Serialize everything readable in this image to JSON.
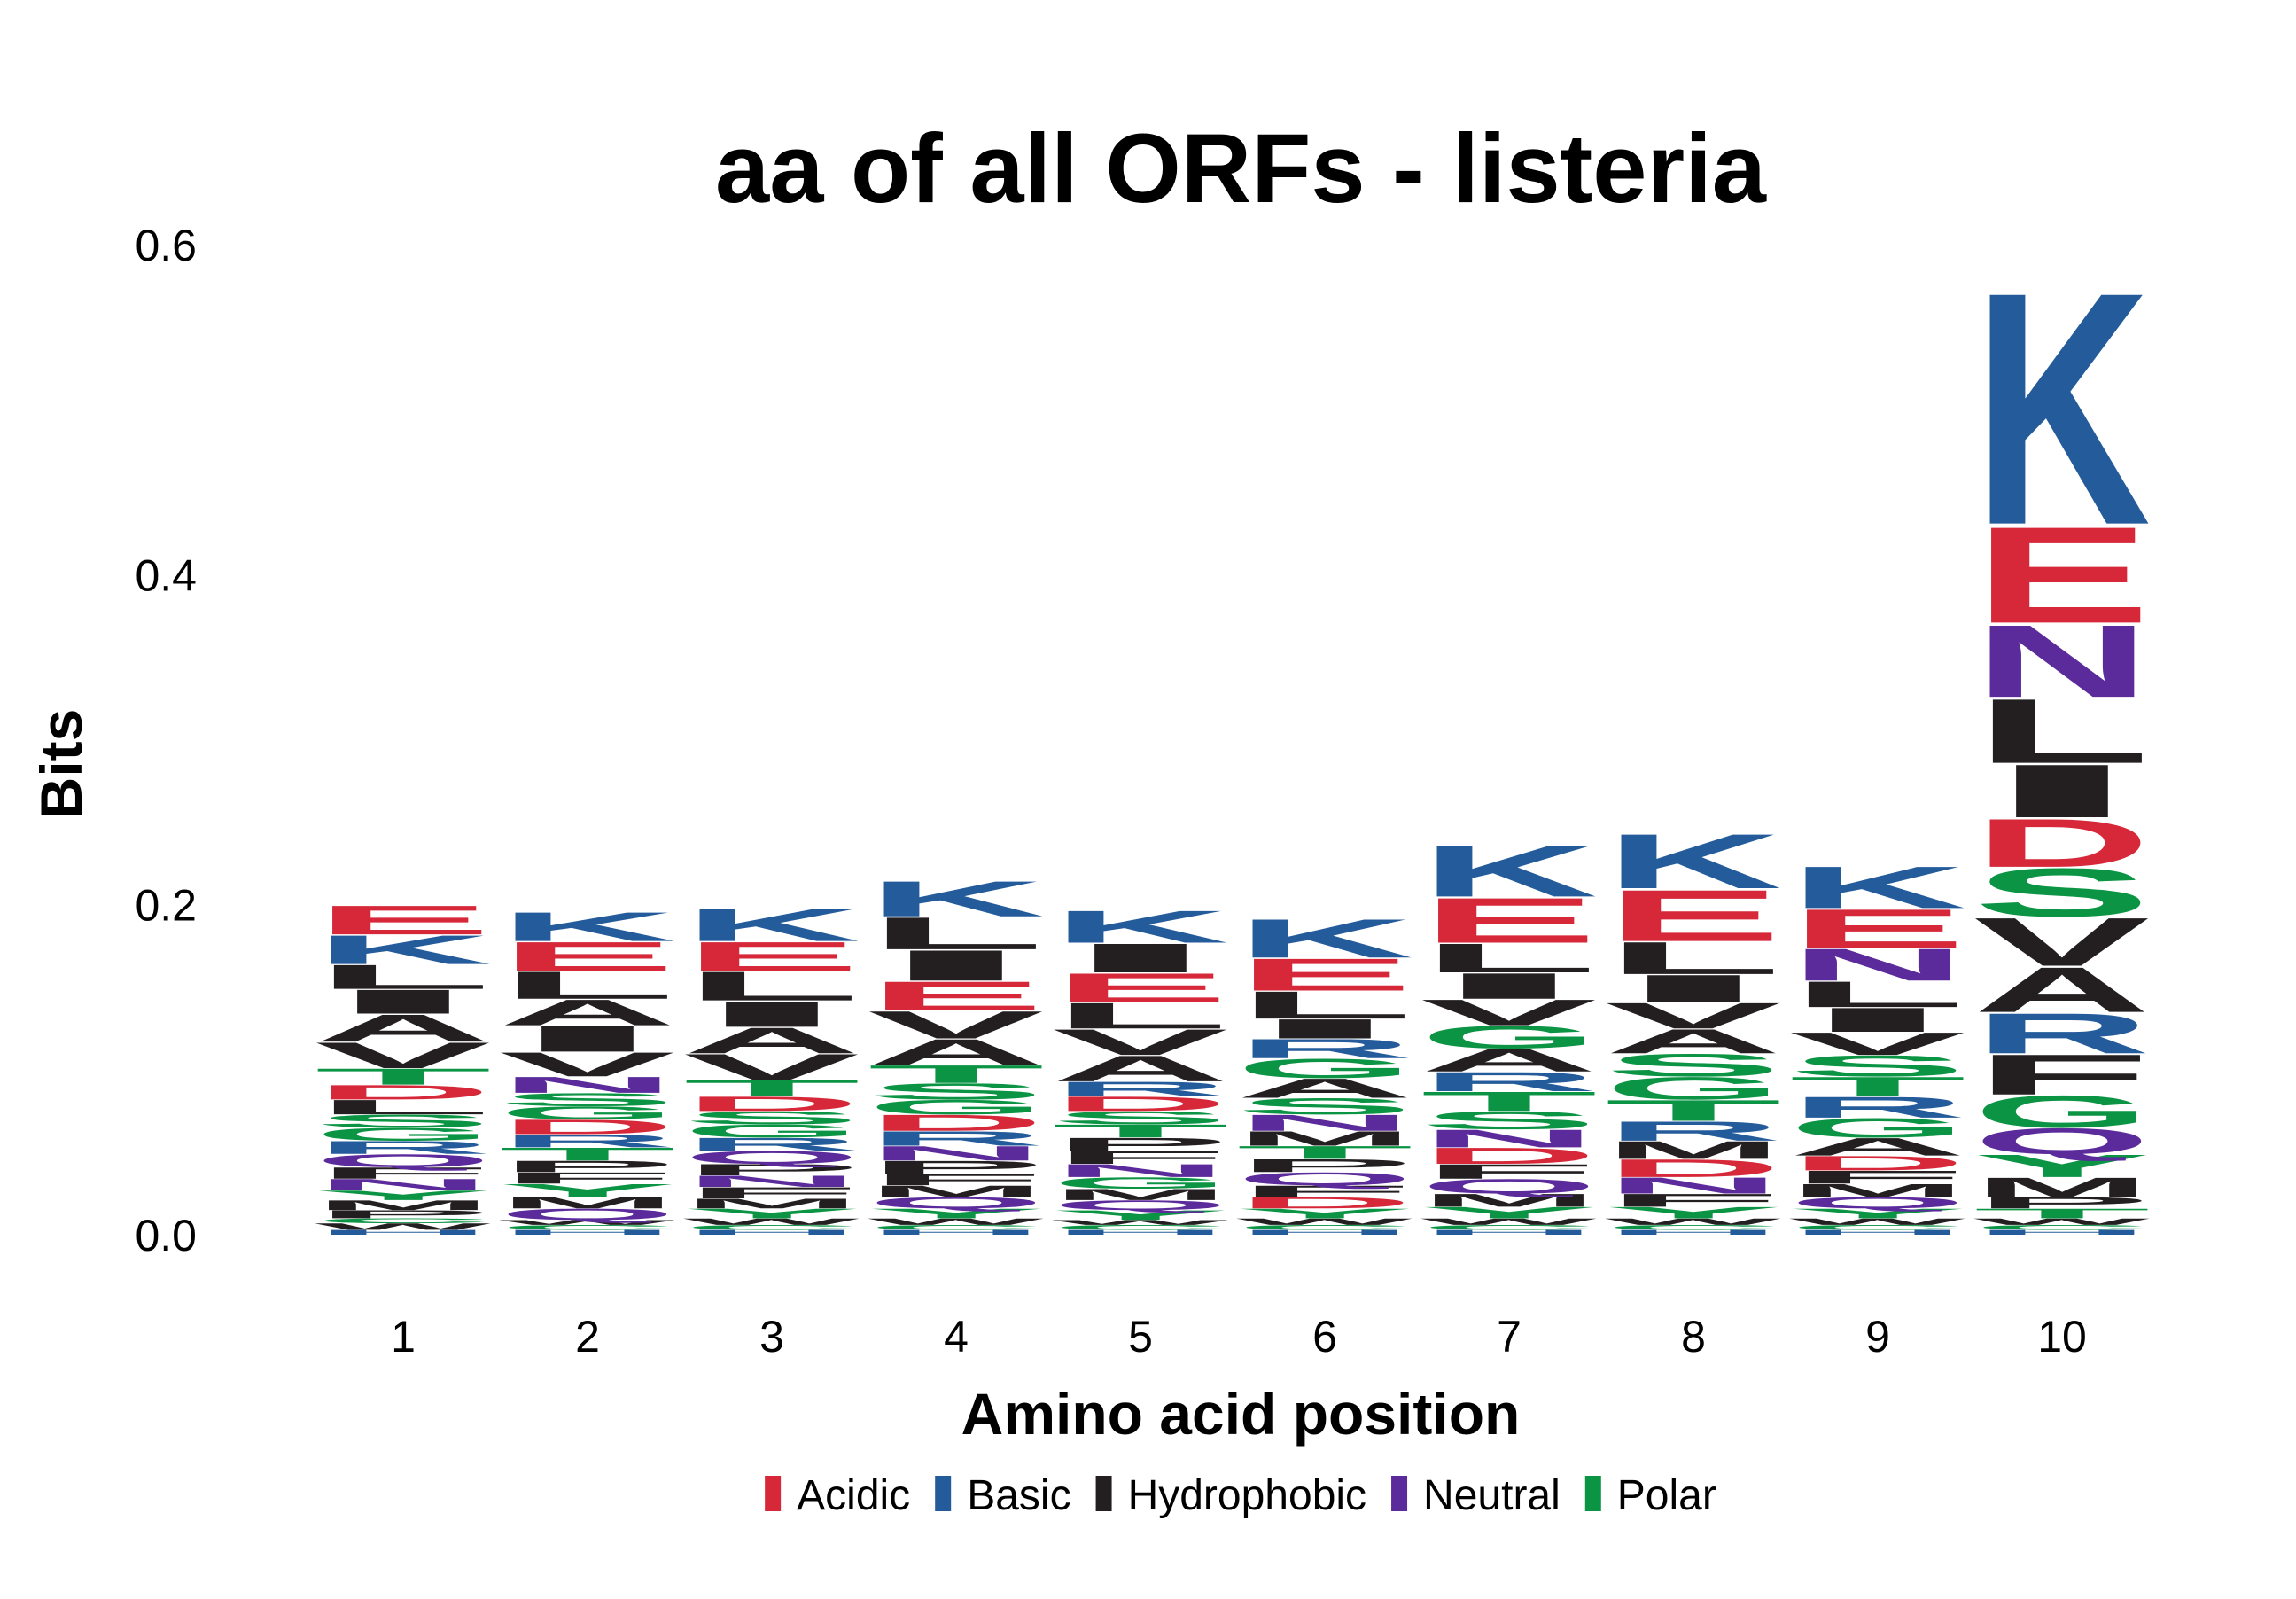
{
  "chart_data": {
    "type": "sequence-logo",
    "title": "aa of all ORFs - listeria",
    "xlabel": "Amino acid position",
    "ylabel": "Bits",
    "ylim": [
      0,
      0.6
    ],
    "yticks": [
      "0.0",
      "0.2",
      "0.4",
      "0.6"
    ],
    "grid": false,
    "legend_position": "bottom",
    "colors": {
      "Acidic": "#d62839",
      "Basic": "#245b9b",
      "Hydrophobic": "#231f20",
      "Neutral": "#5b2a9b",
      "Polar": "#0b9444"
    },
    "legend": [
      "Acidic",
      "Basic",
      "Hydrophobic",
      "Neutral",
      "Polar"
    ],
    "aa_class": {
      "D": "Acidic",
      "E": "Acidic",
      "K": "Basic",
      "R": "Basic",
      "H": "Basic",
      "A": "Hydrophobic",
      "V": "Hydrophobic",
      "L": "Hydrophobic",
      "I": "Hydrophobic",
      "M": "Hydrophobic",
      "F": "Hydrophobic",
      "W": "Hydrophobic",
      "P": "Hydrophobic",
      "N": "Neutral",
      "Q": "Neutral",
      "S": "Polar",
      "T": "Polar",
      "G": "Polar",
      "Y": "Polar",
      "C": "Polar"
    },
    "positions": [
      {
        "label": "1",
        "letters": [
          {
            "aa": "H",
            "bits": 0.003
          },
          {
            "aa": "W",
            "bits": 0.004
          },
          {
            "aa": "C",
            "bits": 0.003
          },
          {
            "aa": "P",
            "bits": 0.005
          },
          {
            "aa": "M",
            "bits": 0.006
          },
          {
            "aa": "Y",
            "bits": 0.006
          },
          {
            "aa": "N",
            "bits": 0.007
          },
          {
            "aa": "F",
            "bits": 0.007
          },
          {
            "aa": "Q",
            "bits": 0.008
          },
          {
            "aa": "R",
            "bits": 0.008
          },
          {
            "aa": "G",
            "bits": 0.008
          },
          {
            "aa": "S",
            "bits": 0.008
          },
          {
            "aa": "L",
            "bits": 0.009
          },
          {
            "aa": "D",
            "bits": 0.009
          },
          {
            "aa": "T",
            "bits": 0.01
          },
          {
            "aa": "V",
            "bits": 0.016
          },
          {
            "aa": "A",
            "bits": 0.017
          },
          {
            "aa": "I",
            "bits": 0.015
          },
          {
            "aa": "L",
            "bits": 0.015
          },
          {
            "aa": "K",
            "bits": 0.018
          },
          {
            "aa": "E",
            "bits": 0.018
          }
        ]
      },
      {
        "label": "2",
        "letters": [
          {
            "aa": "H",
            "bits": 0.003
          },
          {
            "aa": "C",
            "bits": 0.003
          },
          {
            "aa": "W",
            "bits": 0.003
          },
          {
            "aa": "Q",
            "bits": 0.007
          },
          {
            "aa": "M",
            "bits": 0.007
          },
          {
            "aa": "Y",
            "bits": 0.008
          },
          {
            "aa": "F",
            "bits": 0.007
          },
          {
            "aa": "P",
            "bits": 0.007
          },
          {
            "aa": "T",
            "bits": 0.008
          },
          {
            "aa": "R",
            "bits": 0.008
          },
          {
            "aa": "D",
            "bits": 0.009
          },
          {
            "aa": "G",
            "bits": 0.008
          },
          {
            "aa": "S",
            "bits": 0.008
          },
          {
            "aa": "N",
            "bits": 0.01
          },
          {
            "aa": "V",
            "bits": 0.015
          },
          {
            "aa": "I",
            "bits": 0.016
          },
          {
            "aa": "A",
            "bits": 0.016
          },
          {
            "aa": "L",
            "bits": 0.017
          },
          {
            "aa": "E",
            "bits": 0.018
          },
          {
            "aa": "K",
            "bits": 0.018
          }
        ]
      },
      {
        "label": "3",
        "letters": [
          {
            "aa": "H",
            "bits": 0.003
          },
          {
            "aa": "C",
            "bits": 0.003
          },
          {
            "aa": "W",
            "bits": 0.004
          },
          {
            "aa": "Y",
            "bits": 0.006
          },
          {
            "aa": "M",
            "bits": 0.006
          },
          {
            "aa": "F",
            "bits": 0.007
          },
          {
            "aa": "N",
            "bits": 0.007
          },
          {
            "aa": "P",
            "bits": 0.007
          },
          {
            "aa": "Q",
            "bits": 0.008
          },
          {
            "aa": "R",
            "bits": 0.008
          },
          {
            "aa": "G",
            "bits": 0.008
          },
          {
            "aa": "S",
            "bits": 0.008
          },
          {
            "aa": "D",
            "bits": 0.009
          },
          {
            "aa": "T",
            "bits": 0.01
          },
          {
            "aa": "V",
            "bits": 0.016
          },
          {
            "aa": "A",
            "bits": 0.016
          },
          {
            "aa": "I",
            "bits": 0.016
          },
          {
            "aa": "L",
            "bits": 0.018
          },
          {
            "aa": "E",
            "bits": 0.018
          },
          {
            "aa": "K",
            "bits": 0.02
          }
        ]
      },
      {
        "label": "4",
        "letters": [
          {
            "aa": "H",
            "bits": 0.003
          },
          {
            "aa": "C",
            "bits": 0.003
          },
          {
            "aa": "W",
            "bits": 0.004
          },
          {
            "aa": "Y",
            "bits": 0.006
          },
          {
            "aa": "Q",
            "bits": 0.007
          },
          {
            "aa": "M",
            "bits": 0.007
          },
          {
            "aa": "F",
            "bits": 0.007
          },
          {
            "aa": "P",
            "bits": 0.008
          },
          {
            "aa": "N",
            "bits": 0.009
          },
          {
            "aa": "R",
            "bits": 0.009
          },
          {
            "aa": "D",
            "bits": 0.01
          },
          {
            "aa": "G",
            "bits": 0.009
          },
          {
            "aa": "S",
            "bits": 0.01
          },
          {
            "aa": "T",
            "bits": 0.011
          },
          {
            "aa": "A",
            "bits": 0.016
          },
          {
            "aa": "V",
            "bits": 0.017
          },
          {
            "aa": "E",
            "bits": 0.018
          },
          {
            "aa": "I",
            "bits": 0.019
          },
          {
            "aa": "L",
            "bits": 0.02
          },
          {
            "aa": "K",
            "bits": 0.022
          }
        ]
      },
      {
        "label": "5",
        "letters": [
          {
            "aa": "H",
            "bits": 0.003
          },
          {
            "aa": "C",
            "bits": 0.003
          },
          {
            "aa": "W",
            "bits": 0.003
          },
          {
            "aa": "Y",
            "bits": 0.006
          },
          {
            "aa": "Q",
            "bits": 0.006
          },
          {
            "aa": "M",
            "bits": 0.007
          },
          {
            "aa": "G",
            "bits": 0.007
          },
          {
            "aa": "N",
            "bits": 0.008
          },
          {
            "aa": "F",
            "bits": 0.008
          },
          {
            "aa": "P",
            "bits": 0.008
          },
          {
            "aa": "T",
            "bits": 0.008
          },
          {
            "aa": "S",
            "bits": 0.008
          },
          {
            "aa": "D",
            "bits": 0.009
          },
          {
            "aa": "R",
            "bits": 0.009
          },
          {
            "aa": "A",
            "bits": 0.016
          },
          {
            "aa": "V",
            "bits": 0.016
          },
          {
            "aa": "L",
            "bits": 0.016
          },
          {
            "aa": "E",
            "bits": 0.018
          },
          {
            "aa": "I",
            "bits": 0.018
          },
          {
            "aa": "K",
            "bits": 0.02
          }
        ]
      },
      {
        "label": "6",
        "letters": [
          {
            "aa": "H",
            "bits": 0.003
          },
          {
            "aa": "C",
            "bits": 0.003
          },
          {
            "aa": "W",
            "bits": 0.004
          },
          {
            "aa": "Y",
            "bits": 0.006
          },
          {
            "aa": "D",
            "bits": 0.007
          },
          {
            "aa": "F",
            "bits": 0.007
          },
          {
            "aa": "Q",
            "bits": 0.008
          },
          {
            "aa": "P",
            "bits": 0.008
          },
          {
            "aa": "T",
            "bits": 0.008
          },
          {
            "aa": "M",
            "bits": 0.009
          },
          {
            "aa": "N",
            "bits": 0.01
          },
          {
            "aa": "S",
            "bits": 0.01
          },
          {
            "aa": "A",
            "bits": 0.012
          },
          {
            "aa": "G",
            "bits": 0.012
          },
          {
            "aa": "R",
            "bits": 0.012
          },
          {
            "aa": "I",
            "bits": 0.012
          },
          {
            "aa": "L",
            "bits": 0.017
          },
          {
            "aa": "E",
            "bits": 0.02
          },
          {
            "aa": "K",
            "bits": 0.024
          }
        ]
      },
      {
        "label": "7",
        "letters": [
          {
            "aa": "H",
            "bits": 0.003
          },
          {
            "aa": "C",
            "bits": 0.003
          },
          {
            "aa": "W",
            "bits": 0.004
          },
          {
            "aa": "Y",
            "bits": 0.007
          },
          {
            "aa": "M",
            "bits": 0.008
          },
          {
            "aa": "Q",
            "bits": 0.009
          },
          {
            "aa": "F",
            "bits": 0.009
          },
          {
            "aa": "D",
            "bits": 0.01
          },
          {
            "aa": "N",
            "bits": 0.011
          },
          {
            "aa": "S",
            "bits": 0.011
          },
          {
            "aa": "T",
            "bits": 0.012
          },
          {
            "aa": "R",
            "bits": 0.012
          },
          {
            "aa": "A",
            "bits": 0.014
          },
          {
            "aa": "G",
            "bits": 0.014
          },
          {
            "aa": "V",
            "bits": 0.016
          },
          {
            "aa": "I",
            "bits": 0.016
          },
          {
            "aa": "L",
            "bits": 0.018
          },
          {
            "aa": "E",
            "bits": 0.028
          },
          {
            "aa": "K",
            "bits": 0.032
          }
        ]
      },
      {
        "label": "8",
        "letters": [
          {
            "aa": "H",
            "bits": 0.003
          },
          {
            "aa": "C",
            "bits": 0.003
          },
          {
            "aa": "W",
            "bits": 0.004
          },
          {
            "aa": "Y",
            "bits": 0.007
          },
          {
            "aa": "F",
            "bits": 0.008
          },
          {
            "aa": "N",
            "bits": 0.01
          },
          {
            "aa": "D",
            "bits": 0.011
          },
          {
            "aa": "M",
            "bits": 0.011
          },
          {
            "aa": "R",
            "bits": 0.012
          },
          {
            "aa": "T",
            "bits": 0.013
          },
          {
            "aa": "G",
            "bits": 0.014
          },
          {
            "aa": "S",
            "bits": 0.014
          },
          {
            "aa": "A",
            "bits": 0.015
          },
          {
            "aa": "V",
            "bits": 0.016
          },
          {
            "aa": "I",
            "bits": 0.017
          },
          {
            "aa": "L",
            "bits": 0.02
          },
          {
            "aa": "E",
            "bits": 0.032
          },
          {
            "aa": "K",
            "bits": 0.034
          }
        ]
      },
      {
        "label": "9",
        "letters": [
          {
            "aa": "H",
            "bits": 0.003
          },
          {
            "aa": "C",
            "bits": 0.003
          },
          {
            "aa": "W",
            "bits": 0.004
          },
          {
            "aa": "Y",
            "bits": 0.006
          },
          {
            "aa": "Q",
            "bits": 0.007
          },
          {
            "aa": "M",
            "bits": 0.008
          },
          {
            "aa": "F",
            "bits": 0.008
          },
          {
            "aa": "D",
            "bits": 0.009
          },
          {
            "aa": "A",
            "bits": 0.011
          },
          {
            "aa": "G",
            "bits": 0.012
          },
          {
            "aa": "R",
            "bits": 0.013
          },
          {
            "aa": "T",
            "bits": 0.012
          },
          {
            "aa": "S",
            "bits": 0.013
          },
          {
            "aa": "V",
            "bits": 0.014
          },
          {
            "aa": "I",
            "bits": 0.015
          },
          {
            "aa": "L",
            "bits": 0.016
          },
          {
            "aa": "N",
            "bits": 0.02
          },
          {
            "aa": "E",
            "bits": 0.024
          },
          {
            "aa": "K",
            "bits": 0.026
          }
        ]
      },
      {
        "label": "10",
        "letters": [
          {
            "aa": "H",
            "bits": 0.003
          },
          {
            "aa": "C",
            "bits": 0.003
          },
          {
            "aa": "W",
            "bits": 0.004
          },
          {
            "aa": "T",
            "bits": 0.006
          },
          {
            "aa": "P",
            "bits": 0.007
          },
          {
            "aa": "M",
            "bits": 0.012
          },
          {
            "aa": "Y",
            "bits": 0.014
          },
          {
            "aa": "Q",
            "bits": 0.016
          },
          {
            "aa": "G",
            "bits": 0.02
          },
          {
            "aa": "F",
            "bits": 0.025
          },
          {
            "aa": "R",
            "bits": 0.025
          },
          {
            "aa": "A",
            "bits": 0.028
          },
          {
            "aa": "V",
            "bits": 0.03
          },
          {
            "aa": "S",
            "bits": 0.03
          },
          {
            "aa": "D",
            "bits": 0.03
          },
          {
            "aa": "I",
            "bits": 0.033
          },
          {
            "aa": "L",
            "bits": 0.04
          },
          {
            "aa": "N",
            "bits": 0.045
          },
          {
            "aa": "E",
            "bits": 0.06
          },
          {
            "aa": "K",
            "bits": 0.145
          }
        ]
      }
    ]
  }
}
